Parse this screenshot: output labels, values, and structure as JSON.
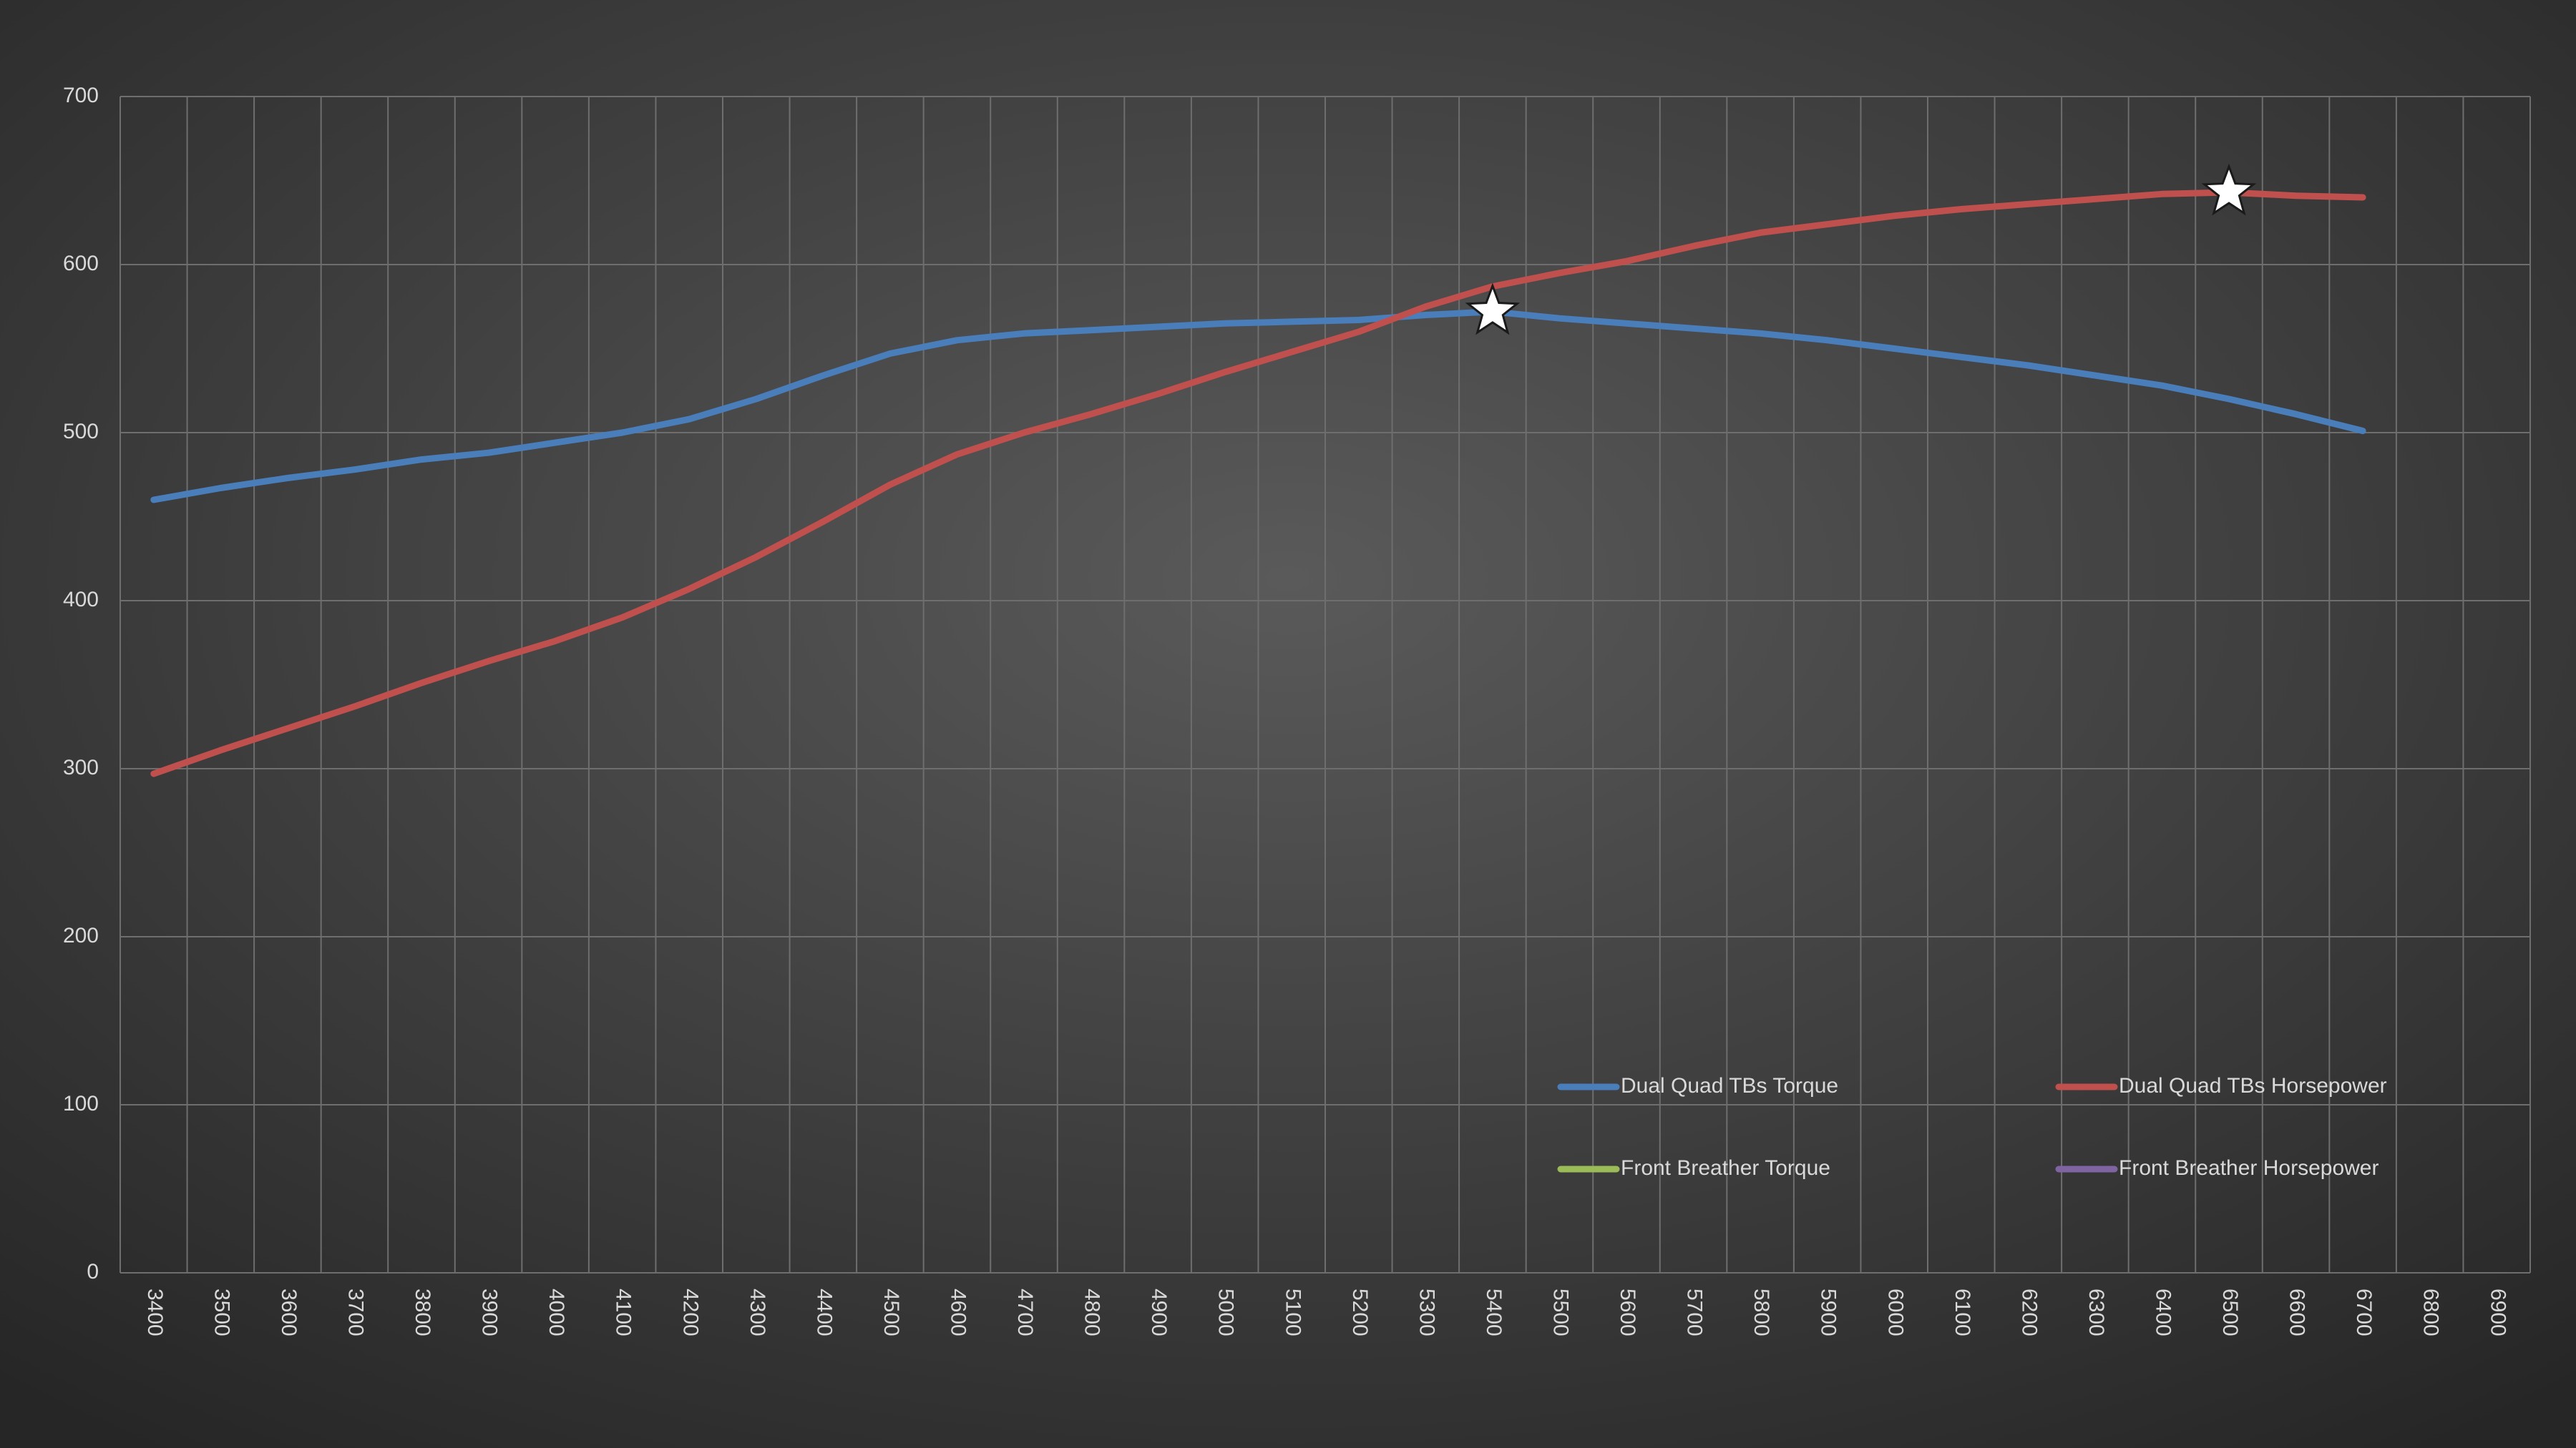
{
  "chart_data": {
    "type": "line",
    "categories": [
      "3400",
      "3500",
      "3600",
      "3700",
      "3800",
      "3900",
      "4000",
      "4100",
      "4200",
      "4300",
      "4400",
      "4500",
      "4600",
      "4700",
      "4800",
      "4900",
      "5000",
      "5100",
      "5200",
      "5300",
      "5400",
      "5500",
      "5600",
      "5700",
      "5800",
      "5900",
      "6000",
      "6100",
      "6200",
      "6300",
      "6400",
      "6500",
      "6600",
      "6700",
      "6800",
      "6900"
    ],
    "series": [
      {
        "name": "Dual Quad TBs Torque",
        "color": "#4a7ebb",
        "peak_marker": true,
        "values": [
          460,
          467,
          473,
          478,
          484,
          488,
          494,
          500,
          508,
          520,
          534,
          547,
          555,
          559,
          561,
          563,
          565,
          566,
          567,
          570,
          572,
          568,
          565,
          562,
          559,
          555,
          550,
          545,
          540,
          534,
          528,
          520,
          511,
          501,
          null,
          null
        ]
      },
      {
        "name": "Dual Quad TBs Horsepower",
        "color": "#c0504d",
        "peak_marker": true,
        "values": [
          297,
          311,
          324,
          337,
          351,
          364,
          376,
          390,
          407,
          426,
          447,
          469,
          487,
          500,
          511,
          523,
          536,
          548,
          560,
          575,
          587,
          595,
          602,
          611,
          619,
          624,
          629,
          633,
          636,
          639,
          642,
          643,
          641,
          640,
          null,
          null
        ]
      },
      {
        "name": "Front Breather Torque",
        "color": "#9bbb59",
        "peak_marker": false,
        "values": [
          null,
          null,
          null,
          null,
          null,
          null,
          null,
          null,
          null,
          null,
          null,
          null,
          null,
          null,
          null,
          null,
          null,
          null,
          null,
          null,
          null,
          null,
          null,
          null,
          null,
          null,
          null,
          null,
          null,
          null,
          null,
          null,
          null,
          null,
          null,
          null
        ]
      },
      {
        "name": "Front Breather Horsepower",
        "color": "#8064a2",
        "peak_marker": false,
        "values": [
          null,
          null,
          null,
          null,
          null,
          null,
          null,
          null,
          null,
          null,
          null,
          null,
          null,
          null,
          null,
          null,
          null,
          null,
          null,
          null,
          null,
          null,
          null,
          null,
          null,
          null,
          null,
          null,
          null,
          null,
          null,
          null,
          null,
          null,
          null,
          null
        ]
      }
    ],
    "ylim": [
      0,
      700
    ],
    "yticks": [
      0,
      100,
      200,
      300,
      400,
      500,
      600,
      700
    ],
    "grid": true,
    "legend": "lower-right"
  }
}
